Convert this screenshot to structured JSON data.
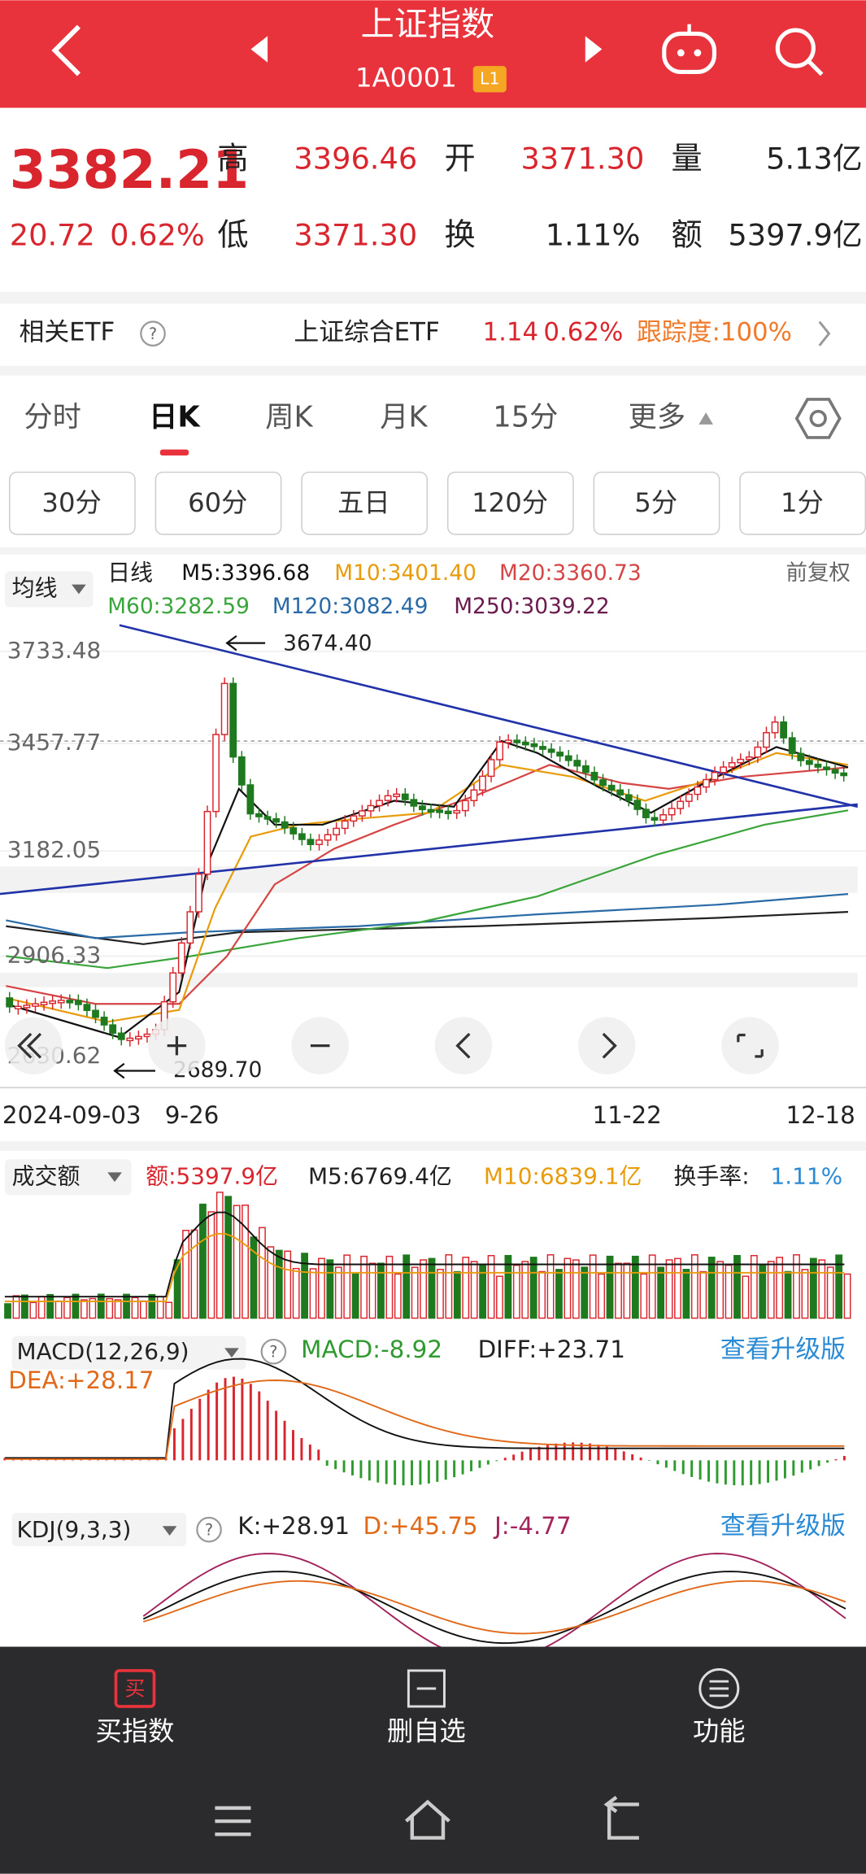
{
  "header": {
    "title": "上证指数",
    "code": "1A0001",
    "level": "L1"
  },
  "quote": {
    "price": "3382.21",
    "change": "20.72",
    "change_pct": "0.62%",
    "stats": [
      {
        "label": "高",
        "value": "3396.46"
      },
      {
        "label": "开",
        "value": "3371.30"
      },
      {
        "label": "量",
        "value": "5.13亿"
      },
      {
        "label": "低",
        "value": "3371.30"
      },
      {
        "label": "换",
        "value": "1.11%"
      },
      {
        "label": "额",
        "value": "5397.9亿"
      }
    ]
  },
  "etf": {
    "label": "相关ETF",
    "help": "?",
    "name": "上证综合ETF",
    "price": "1.14",
    "pct": "0.62%",
    "tracking": "跟踪度:100%"
  },
  "tabs": [
    "分时",
    "日K",
    "周K",
    "月K",
    "15分",
    "更多"
  ],
  "subtabs": [
    "30分",
    "60分",
    "五日",
    "120分",
    "5分",
    "1分"
  ],
  "kline": {
    "ma_menu": "均线",
    "period": "日线",
    "ma": [
      "M5:3396.68",
      "M10:3401.40",
      "M20:3360.73",
      "M60:3282.59",
      "M120:3082.49",
      "M250:3039.22"
    ],
    "adjust": "前复权",
    "y_labels": [
      "3733.48",
      "3457.77",
      "3182.05",
      "2906.33",
      "2630.62"
    ],
    "high_note": "3674.40",
    "low_note": "2689.70",
    "x_labels": [
      "2024-09-03",
      "9-26",
      "11-22",
      "12-18"
    ]
  },
  "volume": {
    "menu": "成交额",
    "amount": "额:5397.9亿",
    "m5": "M5:6769.4亿",
    "m10": "M10:6839.1亿",
    "turnover_label": "换手率:",
    "turnover": "1.11%"
  },
  "macd": {
    "menu": "MACD(12,26,9)",
    "help": "?",
    "macd": "MACD:-8.92",
    "diff": "DIFF:+23.71",
    "dea": "DEA:+28.17",
    "upgrade": "查看升级版"
  },
  "kdj": {
    "menu": "KDJ(9,3,3)",
    "help": "?",
    "k": "K:+28.91",
    "d": "D:+45.75",
    "j": "J:-4.77",
    "upgrade": "查看升级版"
  },
  "bottom_bar": {
    "buy_icon": "买",
    "buy": "买指数",
    "remove": "删自选",
    "func": "功能"
  }
}
